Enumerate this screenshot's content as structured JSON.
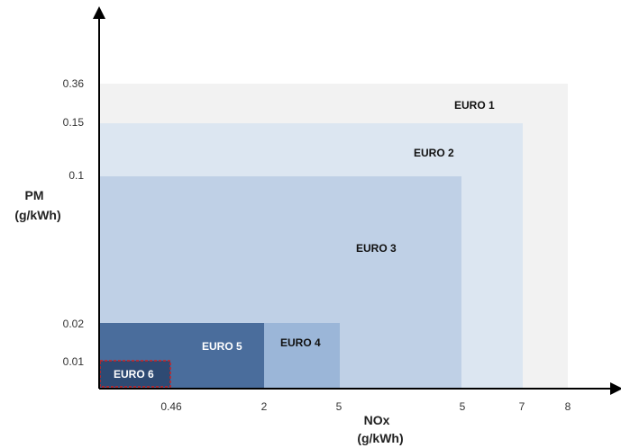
{
  "chart_data": {
    "type": "area",
    "title": "",
    "xlabel": {
      "line1": "NOx",
      "line2": "(g/kWh)"
    },
    "ylabel": {
      "line1": "PM",
      "line2": "(g/kWh)"
    },
    "x_ticks": [
      "0.46",
      "2",
      "5",
      "5",
      "7",
      "8"
    ],
    "y_ticks": [
      "0.36",
      "0.15",
      "0.1",
      "0.02",
      "0.01"
    ],
    "grid": false,
    "legend": "none",
    "series": [
      {
        "name": "EURO 1",
        "nox": "8",
        "pm": "0.36",
        "color": "#f2f2f2",
        "label_color": "#111111"
      },
      {
        "name": "EURO 2",
        "nox": "7",
        "pm": "0.15",
        "color": "#dce6f1",
        "label_color": "#111111"
      },
      {
        "name": "EURO 3",
        "nox": "5",
        "pm": "0.1",
        "color": "#bfd0e6",
        "label_color": "#111111"
      },
      {
        "name": "EURO 4",
        "nox": "5",
        "pm": "0.02",
        "color": "#9bb6d8",
        "label_color": "#111111"
      },
      {
        "name": "EURO 5",
        "nox": "2",
        "pm": "0.02",
        "color": "#4a6d9c",
        "label_color": "#ffffff"
      },
      {
        "name": "EURO 6",
        "nox": "0.46",
        "pm": "0.01",
        "color": "#2e4a73",
        "label_color": "#ffffff",
        "border": "#cc2222"
      }
    ]
  }
}
